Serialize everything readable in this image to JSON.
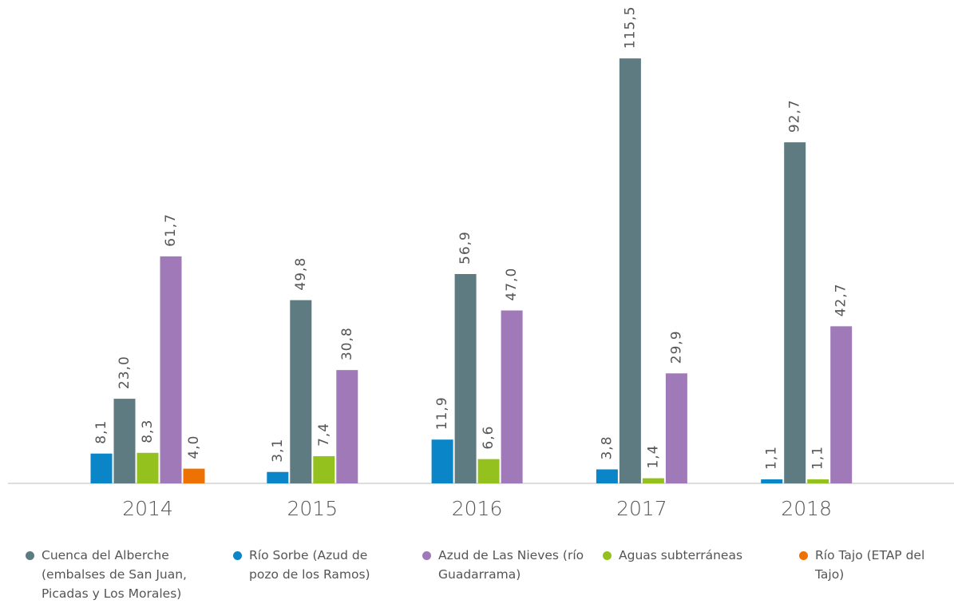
{
  "chart_data": {
    "type": "bar",
    "categories": [
      "2014",
      "2015",
      "2016",
      "2017",
      "2018"
    ],
    "series": [
      {
        "name": "Cuenca del Alberche (embalses de San Juan, Picadas y Los Morales)",
        "color": "#5f7b82",
        "values": [
          23.0,
          49.8,
          56.9,
          115.5,
          92.7
        ],
        "value_labels": [
          "23,0",
          "49,8",
          "56,9",
          "115,5",
          "92,7"
        ]
      },
      {
        "name": "Río Sorbe (Azud de pozo de los Ramos)",
        "color": "#0a86c8",
        "values": [
          8.1,
          3.1,
          11.9,
          3.8,
          1.1
        ],
        "value_labels": [
          "8,1",
          "3,1",
          "11,9",
          "3,8",
          "1,1"
        ]
      },
      {
        "name": "Azud de Las Nieves (río Guadarrama)",
        "color": "#a07ab8",
        "values": [
          61.7,
          30.8,
          47.0,
          29.9,
          42.7
        ],
        "value_labels": [
          "61,7",
          "30,8",
          "47,0",
          "29,9",
          "42,7"
        ]
      },
      {
        "name": "Aguas subterráneas",
        "color": "#95c11f",
        "values": [
          8.3,
          7.4,
          6.6,
          1.4,
          1.1
        ],
        "value_labels": [
          "8,3",
          "7,4",
          "6,6",
          "1,4",
          "1,1"
        ]
      },
      {
        "name": "Río Tajo (ETAP del Tajo)",
        "color": "#ee7203",
        "values": [
          4.0,
          null,
          null,
          null,
          null
        ],
        "value_labels": [
          "4,0",
          null,
          null,
          null,
          null
        ]
      }
    ]
  }
}
